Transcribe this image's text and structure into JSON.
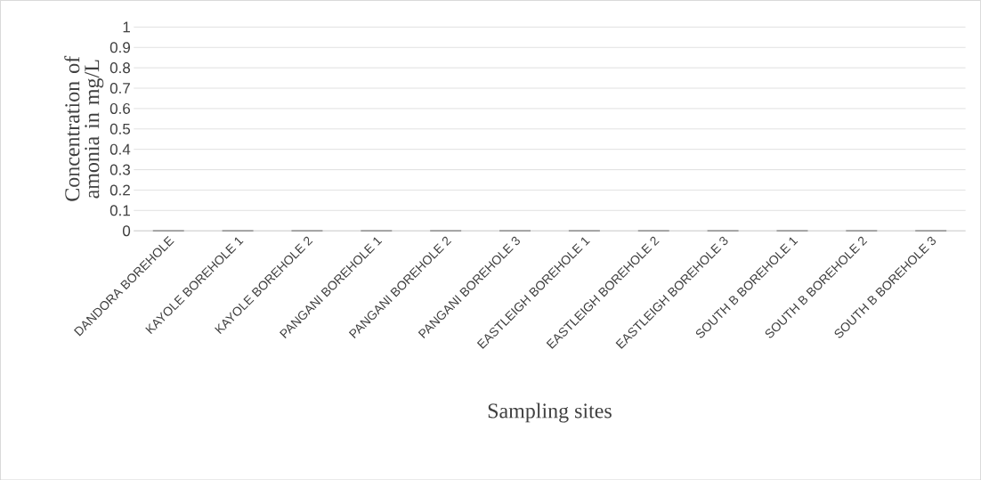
{
  "chart_data": {
    "type": "bar",
    "xlabel": "Sampling sites",
    "ylabel": "Concentration of amonia in mg/L",
    "categories": [
      "DANDORA BOREHOLE",
      "KAYOLE BOREHOLE 1",
      "KAYOLE BOREHOLE 2",
      "PANGANI BOREHOLE 1",
      "PANGANI BOREHOLE 2",
      "PANGANI BOREHOLE 3",
      "EASTLEIGH BOREHOLE 1",
      "EASTLEIGH BOREHOLE 2",
      "EASTLEIGH BOREHOLE 3",
      "SOUTH B BOREHOLE 1",
      "SOUTH B BOREHOLE 2",
      "SOUTH B BOREHOLE 3"
    ],
    "values": [
      0,
      0,
      0,
      0,
      0,
      0,
      0,
      0,
      0,
      0,
      0,
      0
    ],
    "color": "#7f7f7f",
    "ylim": [
      0,
      1
    ],
    "yticks": [
      0,
      0.1,
      0.2,
      0.3,
      0.4,
      0.5,
      0.6,
      0.7,
      0.8,
      0.9,
      1
    ],
    "grid": "y"
  }
}
